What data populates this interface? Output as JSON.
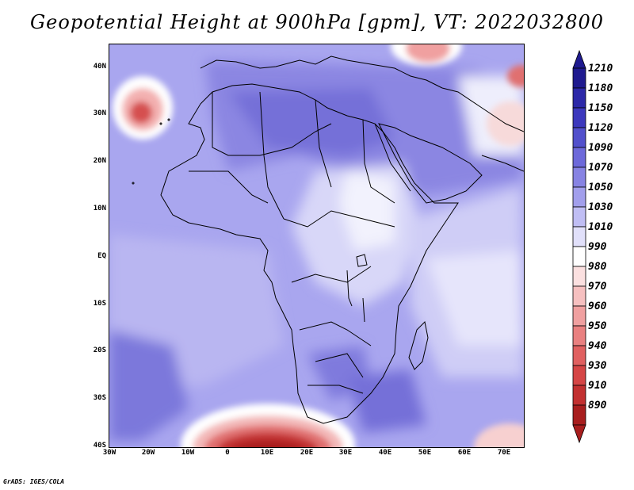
{
  "title": "Geopotential Height at 900hPa [gpm], VT: 2022032800",
  "credit": "GrADS: IGES/COLA",
  "lat_labels": [
    "40N",
    "30N",
    "20N",
    "10N",
    "EQ",
    "10S",
    "20S",
    "30S",
    "40S"
  ],
  "lon_labels": [
    "30W",
    "20W",
    "10W",
    "0",
    "10E",
    "20E",
    "30E",
    "40E",
    "50E",
    "60E",
    "70E"
  ],
  "colorbar": {
    "levels": [
      "1210",
      "1180",
      "1150",
      "1120",
      "1090",
      "1070",
      "1050",
      "1030",
      "1010",
      "990",
      "980",
      "970",
      "960",
      "950",
      "940",
      "930",
      "910",
      "890"
    ],
    "colors": [
      "#1f1a8f",
      "#2c28a8",
      "#3c38bd",
      "#5250cc",
      "#6d69da",
      "#8783e3",
      "#a29fec",
      "#c0beF4",
      "#e1e0fa",
      "#ffffff",
      "#fbe0e0",
      "#f6c0c0",
      "#f0a0a0",
      "#e98080",
      "#e06060",
      "#d54545",
      "#c23030",
      "#a81e1e"
    ]
  },
  "map": {
    "projection": "lat-lon",
    "lon_range": [
      "30W",
      "75E"
    ],
    "lat_range": [
      "40S",
      "45N"
    ],
    "field": "geopotential height 900hPa",
    "features": [
      "coastlines",
      "country borders",
      "lakes"
    ]
  }
}
